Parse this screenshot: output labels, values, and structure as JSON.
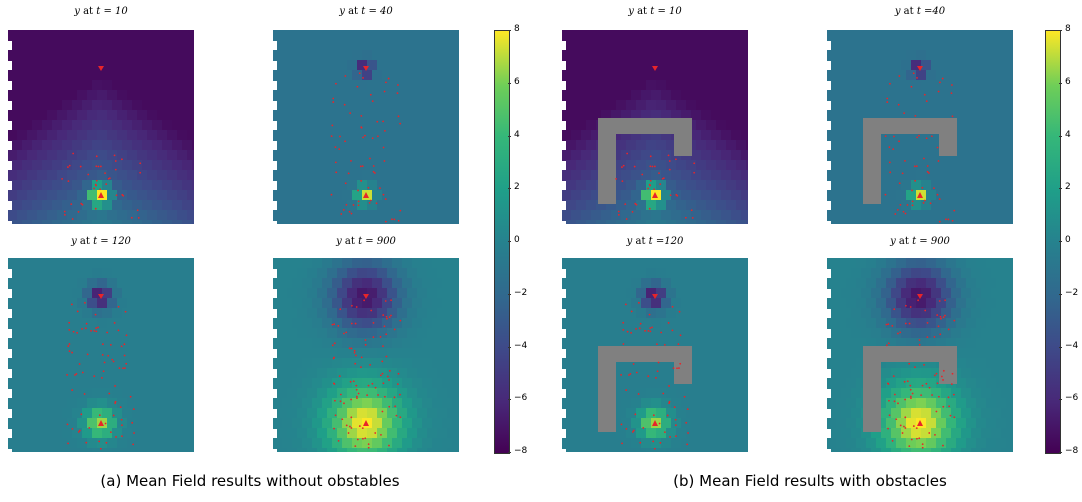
{
  "figure_a": {
    "caption": "(a) Mean Field results without obstables",
    "panels": [
      {
        "title_var": "y",
        "title_t": "at",
        "title_val": "t = 10",
        "stage": 0
      },
      {
        "title_var": "y",
        "title_t": "at",
        "title_val": "t = 40",
        "stage": 1
      },
      {
        "title_var": "y",
        "title_t": "at",
        "title_val": "t = 120",
        "stage": 2
      },
      {
        "title_var": "y",
        "title_t": "at",
        "title_val": "t = 900",
        "stage": 3
      }
    ],
    "obstacles": false
  },
  "figure_b": {
    "caption": "(b) Mean Field results with obstacles",
    "panels": [
      {
        "title_var": "y",
        "title_t": "at",
        "title_val": "t = 10",
        "stage": 0
      },
      {
        "title_var": "y",
        "title_t": "at",
        "title_val": "t =40",
        "stage": 1
      },
      {
        "title_var": "y",
        "title_t": "at",
        "title_val": "t =120",
        "stage": 2
      },
      {
        "title_var": "y",
        "title_t": "at",
        "title_val": "t = 900",
        "stage": 3
      }
    ],
    "obstacles": true
  },
  "colorbar": {
    "ticks": [
      "8",
      "6",
      "4",
      "2",
      "0",
      "−2",
      "−4",
      "−6",
      "−8"
    ],
    "min": -8,
    "max": 8
  },
  "colors": {
    "low": "#440154",
    "mid": "#3a7f8e",
    "high": "#fde725",
    "marker": "#e8252a",
    "obstacle": "#808080"
  }
}
